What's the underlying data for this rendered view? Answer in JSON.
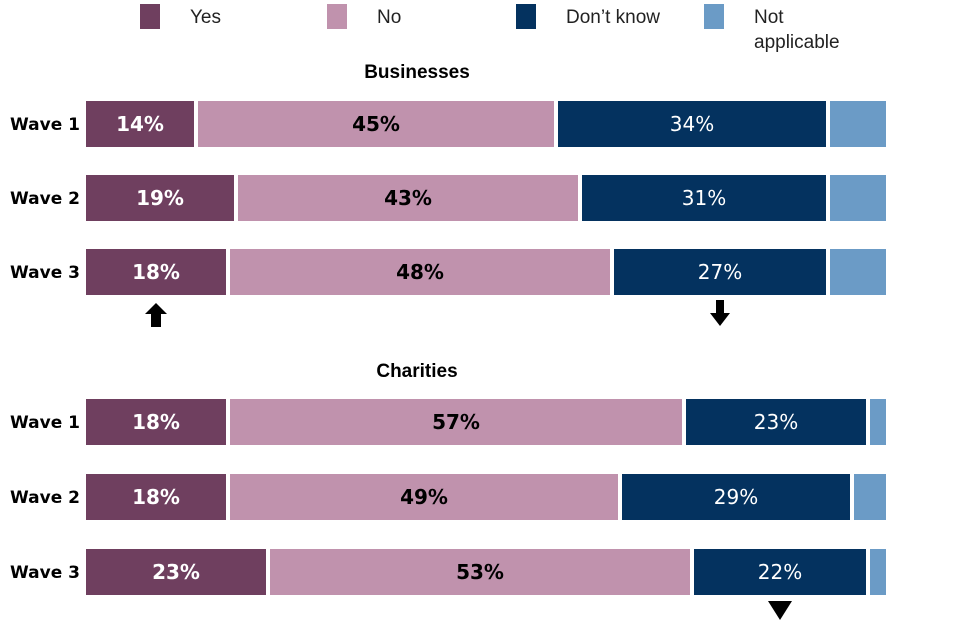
{
  "chart_data": {
    "type": "bar",
    "orientation": "horizontal",
    "stacked": true,
    "percent": true,
    "xlim": [
      0,
      100
    ],
    "legend": {
      "placement": "top",
      "entries": [
        {
          "key": "yes",
          "label": "Yes",
          "color": "#6f3f5f"
        },
        {
          "key": "no",
          "label": "No",
          "color": "#c092ad"
        },
        {
          "key": "dont_know",
          "label": "Don’t know",
          "color": "#04325f"
        },
        {
          "key": "na",
          "label": "Not applicable",
          "label_lines": [
            "Not",
            "applicable"
          ],
          "color": "#6b9bc6"
        }
      ]
    },
    "panels": [
      {
        "title": "Businesses",
        "categories": [
          "Wave 1",
          "Wave 2",
          "Wave 3"
        ],
        "series": [
          {
            "key": "yes",
            "name": "Yes",
            "values": [
              14,
              19,
              18
            ],
            "labels": [
              "14%",
              "19%",
              "18%"
            ],
            "label_color": "#ffffff",
            "label_bold": true
          },
          {
            "key": "no",
            "name": "No",
            "values": [
              45,
              43,
              48
            ],
            "labels": [
              "45%",
              "43%",
              "48%"
            ],
            "label_color": "#000000",
            "label_bold": true
          },
          {
            "key": "dont_know",
            "name": "Don’t know",
            "values": [
              34,
              31,
              27
            ],
            "labels": [
              "34%",
              "31%",
              "27%"
            ],
            "label_color": "#ffffff",
            "label_bold": false
          },
          {
            "key": "na",
            "name": "Not applicable",
            "values": [
              7,
              7,
              7
            ],
            "labels": [
              "",
              "",
              ""
            ],
            "label_color": "#ffffff",
            "label_bold": false
          }
        ],
        "annotations": [
          {
            "type": "arrow-up",
            "series": "yes",
            "category": "Wave 3",
            "meaning": "significant increase"
          },
          {
            "type": "arrow-down",
            "series": "dont_know",
            "category": "Wave 3",
            "meaning": "significant decrease"
          }
        ]
      },
      {
        "title": "Charities",
        "categories": [
          "Wave 1",
          "Wave 2",
          "Wave 3"
        ],
        "series": [
          {
            "key": "yes",
            "name": "Yes",
            "values": [
              18,
              18,
              23
            ],
            "labels": [
              "18%",
              "18%",
              "23%"
            ],
            "label_color": "#ffffff",
            "label_bold": true
          },
          {
            "key": "no",
            "name": "No",
            "values": [
              57,
              49,
              53
            ],
            "labels": [
              "57%",
              "49%",
              "53%"
            ],
            "label_color": "#000000",
            "label_bold": true
          },
          {
            "key": "dont_know",
            "name": "Don’t know",
            "values": [
              23,
              29,
              22
            ],
            "labels": [
              "23%",
              "29%",
              "22%"
            ],
            "label_color": "#ffffff",
            "label_bold": false
          },
          {
            "key": "na",
            "name": "Not applicable",
            "values": [
              2,
              4,
              2
            ],
            "labels": [
              "",
              "",
              ""
            ],
            "label_color": "#ffffff",
            "label_bold": false
          }
        ],
        "annotations": [
          {
            "type": "triangle-down",
            "series": "dont_know",
            "category": "Wave 3",
            "meaning": "significant decrease"
          }
        ]
      }
    ]
  }
}
